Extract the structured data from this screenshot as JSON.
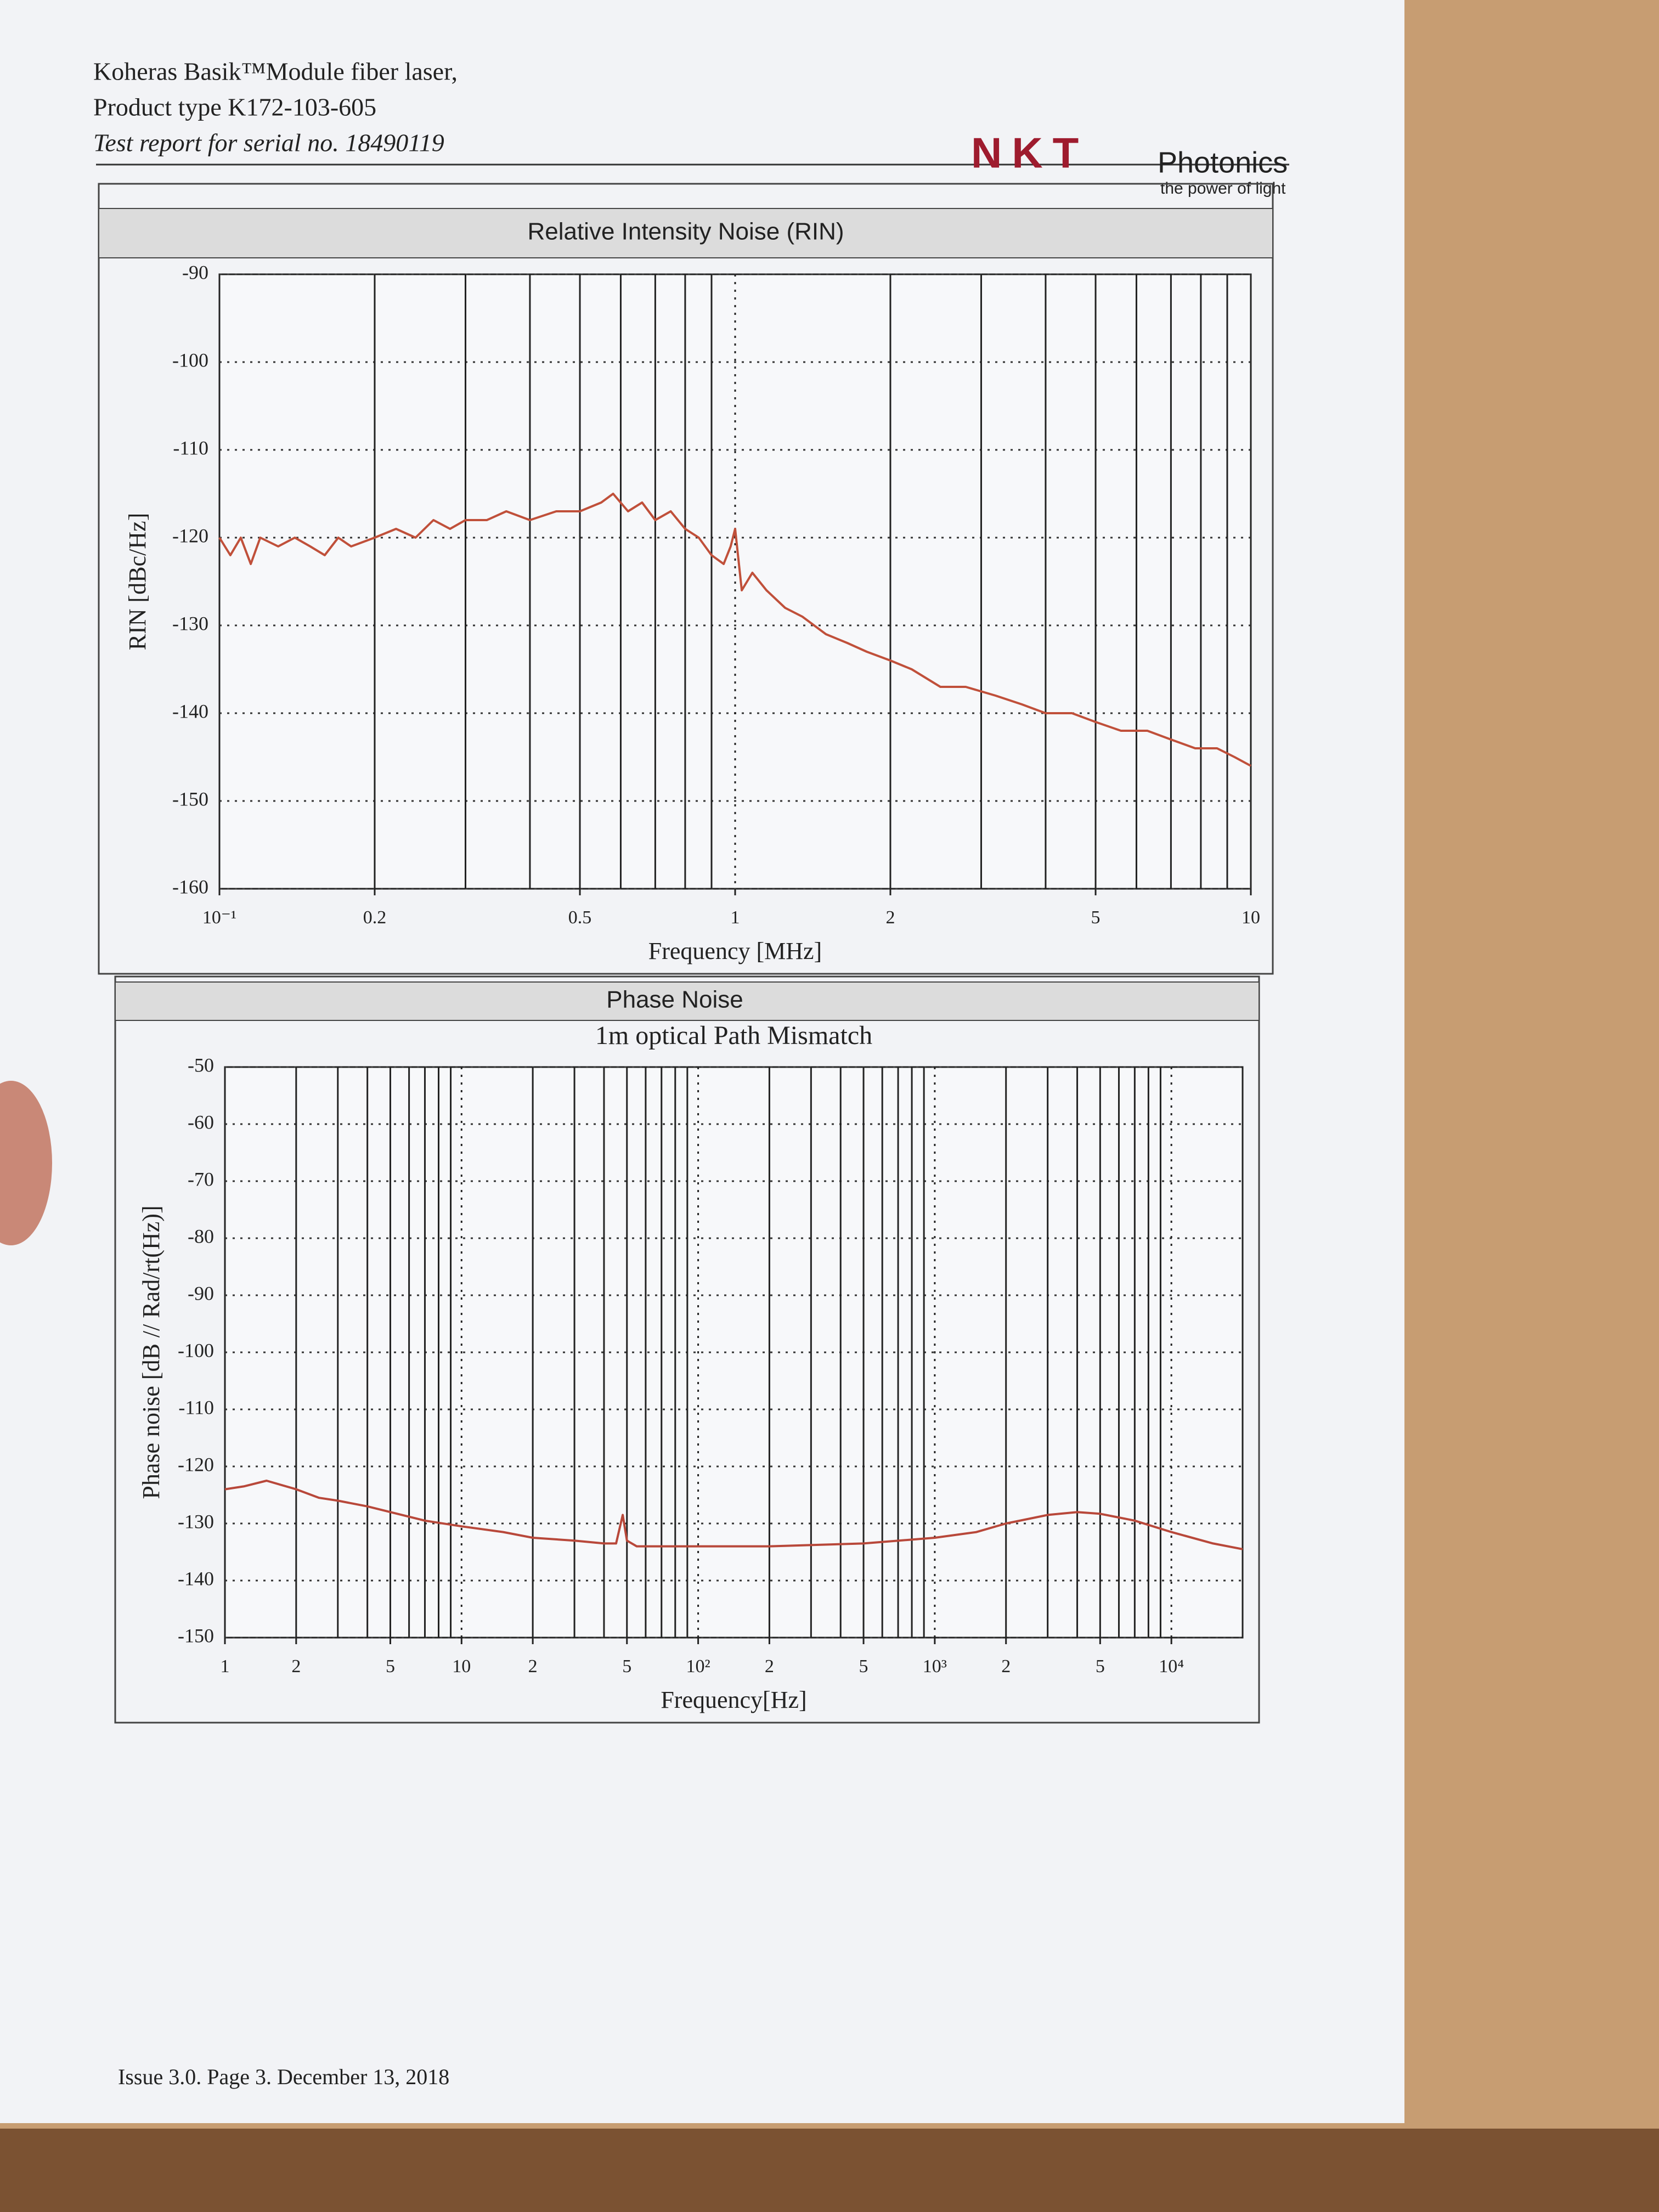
{
  "header": {
    "line1": "Koheras Basik™Module fiber laser,",
    "line2": "Product type K172-103-605",
    "line3": "Test report for serial no. 18490119"
  },
  "logo": {
    "mark": "NKT",
    "name": "Photonics",
    "tagline": "the power of light"
  },
  "footer": "Issue 3.0. Page 3. December 13, 2018",
  "chart_data": [
    {
      "type": "line",
      "title": "Relative Intensity Noise (RIN)",
      "xlabel": "Frequency [MHz]",
      "ylabel": "RIN [dBc/Hz]",
      "xscale": "log",
      "xlim": [
        0.1,
        10
      ],
      "ylim": [
        -160,
        -90
      ],
      "color": "#c0503a",
      "xticks": [
        {
          "value": 0.1,
          "label": "10⁻¹"
        },
        0.2,
        0.5,
        1,
        {
          "value": 2,
          "label": "2"
        },
        {
          "value": 5,
          "label": "5"
        },
        10
      ],
      "yticks": [
        -160,
        -150,
        -140,
        -130,
        -120,
        -110,
        -100,
        -90
      ],
      "xgrid_solid": [
        0.2,
        0.3,
        0.4,
        0.5,
        0.6,
        0.7,
        0.8,
        0.9,
        2,
        3,
        4,
        5,
        6,
        7,
        8,
        9
      ],
      "xgrid_dotted": [
        1
      ],
      "x": [
        0.1,
        0.105,
        0.11,
        0.115,
        0.12,
        0.13,
        0.14,
        0.15,
        0.16,
        0.17,
        0.18,
        0.2,
        0.22,
        0.24,
        0.26,
        0.28,
        0.3,
        0.33,
        0.36,
        0.4,
        0.45,
        0.5,
        0.55,
        0.58,
        0.62,
        0.66,
        0.7,
        0.75,
        0.8,
        0.85,
        0.9,
        0.95,
        0.98,
        1.0,
        1.03,
        1.08,
        1.15,
        1.25,
        1.35,
        1.5,
        1.65,
        1.8,
        2.0,
        2.2,
        2.5,
        2.8,
        3.2,
        3.6,
        4.0,
        4.5,
        5.0,
        5.6,
        6.3,
        7.0,
        7.8,
        8.6,
        9.3,
        10
      ],
      "values": [
        -120,
        -122,
        -120,
        -123,
        -120,
        -121,
        -120,
        -121,
        -122,
        -120,
        -121,
        -120,
        -119,
        -120,
        -118,
        -119,
        -118,
        -118,
        -117,
        -118,
        -117,
        -117,
        -116,
        -115,
        -117,
        -116,
        -118,
        -117,
        -119,
        -120,
        -122,
        -123,
        -121,
        -119,
        -126,
        -124,
        -126,
        -128,
        -129,
        -131,
        -132,
        -133,
        -134,
        -135,
        -137,
        -137,
        -138,
        -139,
        -140,
        -140,
        -141,
        -142,
        -142,
        -143,
        -144,
        -144,
        -145,
        -146
      ]
    },
    {
      "type": "line",
      "title": "Phase Noise",
      "subtitle": "1m optical Path Mismatch",
      "xlabel": "Frequency[Hz]",
      "ylabel": "Phase noise [dB // Rad/rt(Hz)]",
      "xscale": "log",
      "xlim": [
        1,
        20000
      ],
      "ylim": [
        -150,
        -50
      ],
      "color": "#b8483a",
      "xticks": [
        1,
        2,
        5,
        10,
        {
          "value": 20,
          "label": "2"
        },
        {
          "value": 50,
          "label": "5"
        },
        {
          "value": 100,
          "label": "10²"
        },
        {
          "value": 200,
          "label": "2"
        },
        {
          "value": 500,
          "label": "5"
        },
        {
          "value": 1000,
          "label": "10³"
        },
        {
          "value": 2000,
          "label": "2"
        },
        {
          "value": 5000,
          "label": "5"
        },
        {
          "value": 10000,
          "label": "10⁴"
        }
      ],
      "yticks": [
        -150,
        -140,
        -130,
        -120,
        -110,
        -100,
        -90,
        -80,
        -70,
        -60,
        -50
      ],
      "xgrid_solid": [
        2,
        3,
        4,
        5,
        6,
        7,
        8,
        9,
        20,
        30,
        40,
        50,
        60,
        70,
        80,
        90,
        200,
        300,
        400,
        500,
        600,
        700,
        800,
        900,
        2000,
        3000,
        4000,
        5000,
        6000,
        7000,
        8000,
        9000
      ],
      "xgrid_dotted": [
        10,
        100,
        1000,
        10000
      ],
      "x": [
        1,
        1.2,
        1.5,
        2,
        2.5,
        3,
        4,
        5,
        7,
        10,
        15,
        20,
        30,
        40,
        45,
        48,
        50,
        55,
        70,
        100,
        200,
        500,
        1000,
        1500,
        2000,
        3000,
        4000,
        5000,
        7000,
        10000,
        15000,
        20000
      ],
      "values": [
        -124,
        -123.5,
        -122.5,
        -124,
        -125.5,
        -126,
        -127,
        -128,
        -129.5,
        -130.5,
        -131.5,
        -132.5,
        -133,
        -133.5,
        -133.5,
        -128.5,
        -133,
        -134,
        -134,
        -134,
        -134,
        -133.5,
        -132.5,
        -131.5,
        -130,
        -128.5,
        -128,
        -128.3,
        -129.5,
        -131.5,
        -133.5,
        -134.5
      ]
    }
  ]
}
